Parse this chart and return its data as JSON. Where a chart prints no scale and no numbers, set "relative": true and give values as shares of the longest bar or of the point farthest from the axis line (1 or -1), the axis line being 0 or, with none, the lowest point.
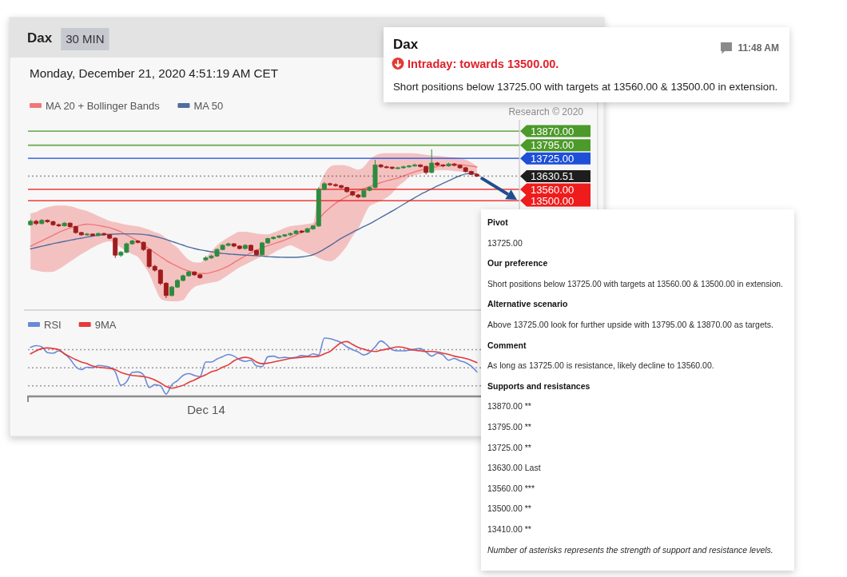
{
  "chart_data": [
    {
      "type": "candlestick",
      "title": "Dax",
      "subtitle": "30 MIN",
      "annotations": [
        "Monday, December 21, 2020 4:51:19 AM CET",
        "Research © 2020"
      ],
      "categories": [
        null,
        null,
        null,
        null,
        null,
        null,
        null,
        null,
        null,
        null,
        null,
        null,
        null,
        null,
        null,
        null,
        null,
        null,
        null,
        null,
        null,
        null,
        null,
        null,
        null,
        null,
        null,
        null,
        null,
        null,
        null,
        null,
        null,
        null,
        null,
        null,
        null,
        null,
        null,
        null,
        null,
        null,
        null,
        null,
        null,
        null,
        null,
        null,
        null,
        null,
        null,
        null,
        null,
        null,
        null,
        null,
        null,
        null,
        null,
        null,
        null,
        null,
        null,
        null,
        null,
        null,
        null,
        null,
        null,
        null,
        null,
        null,
        null,
        null,
        null,
        null,
        null,
        null,
        null,
        null
      ],
      "ohlc": [
        [
          13372,
          13400,
          13366,
          13390
        ],
        [
          13390,
          13398,
          13370,
          13378
        ],
        [
          13378,
          13402,
          13374,
          13395
        ],
        [
          13395,
          13400,
          13382,
          13388
        ],
        [
          13388,
          13393,
          13366,
          13372
        ],
        [
          13372,
          13378,
          13360,
          13366
        ],
        [
          13366,
          13386,
          13362,
          13380
        ],
        [
          13380,
          13384,
          13356,
          13362
        ],
        [
          13362,
          13366,
          13324,
          13330
        ],
        [
          13330,
          13334,
          13312,
          13318
        ],
        [
          13318,
          13328,
          13313,
          13322
        ],
        [
          13322,
          13326,
          13310,
          13315
        ],
        [
          13315,
          13330,
          13311,
          13325
        ],
        [
          13325,
          13329,
          13313,
          13318
        ],
        [
          13318,
          13322,
          13295,
          13300
        ],
        [
          13300,
          13304,
          13195,
          13210
        ],
        [
          13210,
          13232,
          13200,
          13225
        ],
        [
          13225,
          13276,
          13220,
          13270
        ],
        [
          13270,
          13292,
          13265,
          13285
        ],
        [
          13285,
          13290,
          13272,
          13278
        ],
        [
          13278,
          13282,
          13232,
          13240
        ],
        [
          13240,
          13244,
          13140,
          13150
        ],
        [
          13150,
          13158,
          13122,
          13130
        ],
        [
          13130,
          13135,
          13050,
          13060
        ],
        [
          13060,
          13066,
          12981,
          12995
        ],
        [
          12995,
          13046,
          12990,
          13040
        ],
        [
          13040,
          13082,
          13034,
          13075
        ],
        [
          13075,
          13106,
          13070,
          13100
        ],
        [
          13100,
          13128,
          13095,
          13120
        ],
        [
          13120,
          13124,
          13100,
          13105
        ],
        [
          13105,
          13110,
          13084,
          13090
        ],
        [
          13185,
          13205,
          13178,
          13195
        ],
        [
          13195,
          13212,
          13190,
          13205
        ],
        [
          13205,
          13245,
          13200,
          13240
        ],
        [
          13240,
          13268,
          13236,
          13262
        ],
        [
          13262,
          13276,
          13256,
          13270
        ],
        [
          13270,
          13274,
          13252,
          13258
        ],
        [
          13258,
          13262,
          13240,
          13245
        ],
        [
          13245,
          13268,
          13240,
          13262
        ],
        [
          13262,
          13266,
          13230,
          13235
        ],
        [
          13235,
          13240,
          13205,
          13212
        ],
        [
          13212,
          13280,
          13208,
          13275
        ],
        [
          13275,
          13302,
          13270,
          13298
        ],
        [
          13298,
          13310,
          13292,
          13305
        ],
        [
          13305,
          13316,
          13300,
          13312
        ],
        [
          13312,
          13322,
          13306,
          13318
        ],
        [
          13318,
          13330,
          13312,
          13325
        ],
        [
          13325,
          13344,
          13320,
          13338
        ],
        [
          13338,
          13342,
          13326,
          13332
        ],
        [
          13332,
          13356,
          13328,
          13350
        ],
        [
          13350,
          13370,
          13345,
          13365
        ],
        [
          13365,
          13572,
          13360,
          13560
        ],
        [
          13560,
          13600,
          13555,
          13590
        ],
        [
          13590,
          13596,
          13578,
          13585
        ],
        [
          13585,
          13592,
          13574,
          13580
        ],
        [
          13580,
          13584,
          13564,
          13570
        ],
        [
          13570,
          13574,
          13542,
          13548
        ],
        [
          13548,
          13552,
          13524,
          13530
        ],
        [
          13530,
          13536,
          13512,
          13520
        ],
        [
          13520,
          13560,
          13516,
          13555
        ],
        [
          13555,
          13576,
          13550,
          13570
        ],
        [
          13570,
          13717,
          13566,
          13690
        ],
        [
          13690,
          13695,
          13674,
          13680
        ],
        [
          13680,
          13686,
          13672,
          13678
        ],
        [
          13678,
          13682,
          13666,
          13672
        ],
        [
          13672,
          13680,
          13668,
          13675
        ],
        [
          13675,
          13686,
          13670,
          13680
        ],
        [
          13680,
          13690,
          13676,
          13685
        ],
        [
          13685,
          13698,
          13680,
          13690
        ],
        [
          13690,
          13694,
          13676,
          13682
        ],
        [
          13682,
          13686,
          13640,
          13650
        ],
        [
          13650,
          13773,
          13646,
          13700
        ],
        [
          13700,
          13706,
          13684,
          13690
        ],
        [
          13690,
          13694,
          13678,
          13685
        ],
        [
          13685,
          13702,
          13680,
          13695
        ],
        [
          13695,
          13700,
          13682,
          13688
        ],
        [
          13688,
          13692,
          13670,
          13675
        ],
        [
          13675,
          13680,
          13650,
          13655
        ],
        [
          13655,
          13660,
          13636,
          13640
        ],
        [
          13640,
          13646,
          13626,
          13630.51
        ]
      ],
      "colors": [
        "#2e8b3e",
        "#a01c1c",
        "#2e8b3e",
        "#a01c1c",
        "#a01c1c",
        "#a01c1c",
        "#2e8b3e",
        "#a01c1c",
        "#a01c1c",
        "#a01c1c",
        "#2e8b3e",
        "#a01c1c",
        "#2e8b3e",
        "#a01c1c",
        "#a01c1c",
        "#a01c1c",
        "#2e8b3e",
        "#2e8b3e",
        "#2e8b3e",
        "#a01c1c",
        "#a01c1c",
        "#a01c1c",
        "#a01c1c",
        "#a01c1c",
        "#a01c1c",
        "#2e8b3e",
        "#2e8b3e",
        "#2e8b3e",
        "#2e8b3e",
        "#a01c1c",
        "#a01c1c",
        "#2e8b3e",
        "#2e8b3e",
        "#2e8b3e",
        "#2e8b3e",
        "#2e8b3e",
        "#a01c1c",
        "#a01c1c",
        "#2e8b3e",
        "#a01c1c",
        "#a01c1c",
        "#2e8b3e",
        "#2e8b3e",
        "#2e8b3e",
        "#2e8b3e",
        "#2e8b3e",
        "#2e8b3e",
        "#2e8b3e",
        "#a01c1c",
        "#2e8b3e",
        "#2e8b3e",
        "#2e8b3e",
        "#2e8b3e",
        "#a01c1c",
        "#a01c1c",
        "#a01c1c",
        "#a01c1c",
        "#a01c1c",
        "#a01c1c",
        "#2e8b3e",
        "#2e8b3e",
        "#2e8b3e",
        "#a01c1c",
        "#a01c1c",
        "#a01c1c",
        "#2e8b3e",
        "#2e8b3e",
        "#2e8b3e",
        "#2e8b3e",
        "#a01c1c",
        "#a01c1c",
        "#2e8b3e",
        "#a01c1c",
        "#a01c1c",
        "#2e8b3e",
        "#a01c1c",
        "#a01c1c",
        "#a01c1c",
        "#a01c1c",
        "#a01c1c"
      ],
      "series": [
        {
          "name": "MA 20 + Bollinger Bands",
          "type": "line",
          "color": "#f07878",
          "values": [
            13257,
            13272,
            13286,
            13301,
            13316,
            13331,
            13343,
            13354,
            13362,
            13370,
            13375,
            13372,
            13368,
            13362,
            13356,
            13346,
            13334,
            13318,
            13302,
            13286,
            13264,
            13244,
            13222,
            13202,
            13182,
            13165,
            13150,
            13136,
            13125,
            13117,
            13112,
            13112,
            13118,
            13126,
            13138,
            13152,
            13170,
            13188,
            13205,
            13222,
            13236,
            13248,
            13260,
            13270,
            13280,
            13290,
            13303,
            13317,
            13331,
            13345,
            13360,
            13400,
            13435,
            13462,
            13486,
            13505,
            13522,
            13538,
            13552,
            13564,
            13575,
            13586,
            13596,
            13605,
            13613,
            13620,
            13632,
            13643,
            13653,
            13662,
            13670,
            13676,
            13682,
            13687,
            13690,
            13692,
            13691,
            13688,
            13684,
            13679
          ],
          "lower": [
            13134,
            13128,
            13122,
            13120,
            13122,
            13135,
            13155,
            13175,
            13195,
            13215,
            13232,
            13250,
            13265,
            13278,
            13283,
            13270,
            13250,
            13232,
            13215,
            13200,
            13160,
            13110,
            13040,
            12980,
            12966,
            12964,
            12964,
            12970,
            13010,
            13040,
            13050,
            13058,
            13064,
            13068,
            13085,
            13105,
            13125,
            13145,
            13160,
            13175,
            13190,
            13202,
            13207,
            13222,
            13238,
            13252,
            13262,
            13250,
            13235,
            13220,
            13210,
            13195,
            13182,
            13177,
            13190,
            13220,
            13260,
            13310,
            13350,
            13415,
            13470,
            13485,
            13500,
            13515,
            13540,
            13575,
            13598,
            13625,
            13635,
            13643,
            13650,
            13656,
            13662,
            13662,
            13661,
            13658,
            13655,
            13652,
            13648,
            13645
          ],
          "upper": [
            13432,
            13440,
            13455,
            13465,
            13472,
            13474,
            13474,
            13470,
            13462,
            13452,
            13445,
            13432,
            13418,
            13404,
            13392,
            13385,
            13378,
            13372,
            13367,
            13363,
            13355,
            13345,
            13332,
            13322,
            13300,
            13272,
            13250,
            13215,
            13185,
            13172,
            13170,
            13195,
            13230,
            13262,
            13285,
            13305,
            13322,
            13334,
            13334,
            13330,
            13325,
            13321,
            13320,
            13330,
            13342,
            13355,
            13364,
            13368,
            13372,
            13376,
            13380,
            13560,
            13640,
            13680,
            13690,
            13690,
            13685,
            13675,
            13665,
            13680,
            13717,
            13740,
            13750,
            13752,
            13752,
            13752,
            13752,
            13752,
            13751,
            13748,
            13744,
            13740,
            13738,
            13735,
            13732,
            13730,
            13726,
            13718,
            13703,
            13683
          ]
        },
        {
          "name": "MA 50",
          "type": "line",
          "color": "#4f6d9e",
          "values": [
            13243,
            13250,
            13257,
            13264,
            13271,
            13277,
            13283,
            13289,
            13295,
            13300,
            13306,
            13311,
            13315,
            13319,
            13321,
            13322,
            13323,
            13323,
            13323,
            13322,
            13320,
            13316,
            13310,
            13302,
            13293,
            13283,
            13273,
            13263,
            13253,
            13245,
            13238,
            13233,
            13228,
            13224,
            13219,
            13216,
            13214,
            13212,
            13210,
            13208,
            13207,
            13205,
            13202,
            13200,
            13199,
            13198,
            13198,
            13198,
            13200,
            13205,
            13212,
            13225,
            13242,
            13260,
            13280,
            13300,
            13316,
            13332,
            13347,
            13362,
            13376,
            13393,
            13410,
            13427,
            13444,
            13462,
            13480,
            13498,
            13516,
            13533,
            13548,
            13563,
            13578,
            13592,
            13606,
            13620,
            13632,
            13642,
            13645,
            13641
          ]
        }
      ],
      "ylim": [
        12930,
        13930
      ],
      "yticks": [
        {
          "value": 13870,
          "label": "13870.00"
        },
        {
          "value": 13795,
          "label": "13795.00"
        },
        {
          "value": 13725,
          "label": "13725.00"
        },
        {
          "value": 13630.51,
          "label": "13630.51"
        },
        {
          "value": 13560,
          "label": "13560.00"
        },
        {
          "value": 13500,
          "label": "13500.00"
        }
      ],
      "ref_lines": [
        {
          "axis": "y",
          "value": 13870,
          "color": "#4c9a2a"
        },
        {
          "axis": "y",
          "value": 13795,
          "color": "#4c9a2a"
        },
        {
          "axis": "y",
          "value": 13725,
          "color": "#1d4fd8"
        },
        {
          "axis": "y",
          "value": 13630.51,
          "color": "#1e1e1e",
          "line_style": "dotted"
        },
        {
          "axis": "y",
          "value": 13560,
          "color": "#ee1c1c"
        },
        {
          "axis": "y",
          "value": 13500,
          "color": "#ee1c1c"
        }
      ],
      "legend": "top left",
      "tick_labels": "y"
    },
    {
      "type": "line",
      "annotations": [
        "Dec 14"
      ],
      "categories": [
        null,
        null,
        null,
        null,
        null,
        null,
        null,
        null,
        null,
        null,
        null,
        null,
        null,
        null,
        null,
        null,
        null,
        null,
        null,
        null,
        null,
        null,
        null,
        null,
        null,
        null,
        null,
        null,
        null,
        null,
        null,
        null,
        null,
        null,
        null,
        null,
        null,
        null,
        null,
        null,
        null,
        null,
        null,
        null,
        null,
        null,
        null,
        null,
        null,
        null,
        null,
        null,
        null,
        null,
        null,
        null,
        null,
        null,
        null,
        null,
        null,
        null,
        null,
        null,
        null,
        null,
        null,
        null,
        null,
        null,
        null,
        null,
        null,
        null,
        null,
        null,
        null,
        null,
        null,
        null
      ],
      "series": [
        {
          "name": "RSI",
          "color": "#6a8ad8",
          "values": [
            0.84,
            0.87,
            0.85,
            0.75,
            0.74,
            0.78,
            0.73,
            0.64,
            0.51,
            0.46,
            0.5,
            0.49,
            0.53,
            0.52,
            0.5,
            0.42,
            0.19,
            0.25,
            0.41,
            0.42,
            0.37,
            0.15,
            0.2,
            0.18,
            0.04,
            0.2,
            0.27,
            0.36,
            0.39,
            0.36,
            0.34,
            0.59,
            0.59,
            0.64,
            0.68,
            0.72,
            0.69,
            0.63,
            0.6,
            0.62,
            0.52,
            0.51,
            0.68,
            0.69,
            0.66,
            0.67,
            0.66,
            0.67,
            0.7,
            0.69,
            0.73,
            0.71,
            1,
            0.99,
            0.96,
            0.92,
            0.85,
            0.8,
            0.76,
            0.71,
            0.75,
            0.85,
            0.95,
            0.89,
            0.8,
            0.78,
            0.78,
            0.79,
            0.81,
            0.82,
            0.76,
            0.69,
            0.74,
            0.71,
            0.62,
            0.65,
            0.61,
            0.58,
            0.52,
            0.42
          ]
        },
        {
          "name": "9MA",
          "color": "#e63a3a",
          "values": [
            0.73,
            0.78,
            0.82,
            0.83,
            0.82,
            0.8,
            0.73,
            0.68,
            0.63,
            0.59,
            0.56,
            0.52,
            0.5,
            0.49,
            0.48,
            0.46,
            0.41,
            0.38,
            0.36,
            0.35,
            0.34,
            0.32,
            0.28,
            0.23,
            0.17,
            0.14,
            0.16,
            0.19,
            0.24,
            0.28,
            0.33,
            0.37,
            0.42,
            0.45,
            0.5,
            0.54,
            0.61,
            0.65,
            0.67,
            0.65,
            0.59,
            0.56,
            0.57,
            0.59,
            0.61,
            0.63,
            0.65,
            0.66,
            0.67,
            0.68,
            0.68,
            0.69,
            0.73,
            0.77,
            0.85,
            0.92,
            0.94,
            0.89,
            0.84,
            0.81,
            0.78,
            0.77,
            0.79,
            0.81,
            0.83,
            0.85,
            0.84,
            0.81,
            0.79,
            0.78,
            0.77,
            0.77,
            0.76,
            0.74,
            0.72,
            0.69,
            0.67,
            0.65,
            0.62,
            0.58
          ]
        }
      ],
      "relative": true,
      "ref_lines": [
        {
          "axis": "y",
          "value": 0.8,
          "color": "#9a9a9a",
          "line_style": "dotted"
        },
        {
          "axis": "y",
          "value": 0.49,
          "color": "#9a9a9a",
          "line_style": "dotted"
        },
        {
          "axis": "y",
          "value": 0.18,
          "color": "#9a9a9a",
          "line_style": "dotted"
        }
      ],
      "legend": "top left"
    },
    {
      "type": "other",
      "title": "Dax",
      "subtitle": "Intraday: towards 13500.00.",
      "annotations": [
        "11:48 AM",
        "Short positions below 13725.00 with targets at 13560.00 & 13500.00 in extension."
      ]
    },
    {
      "type": "other",
      "annotations": [
        "Pivot",
        "13725.00",
        "Our preference",
        "Short positions below 13725.00 with targets at 13560.00 & 13500.00 in extension.",
        "Alternative scenario",
        "Above 13725.00 look for further upside with 13795.00 & 13870.00 as targets.",
        "Comment",
        "As long as 13725.00 is resistance, likely decline to 13560.00.",
        "Supports and resistances",
        "13870.00 **",
        "13795.00 **",
        "13725.00 **",
        "13630.00 Last",
        "13560.00 ***",
        "13500.00 **",
        "13410.00 **",
        "Number of asterisks represents the strength of support and resistance levels."
      ]
    }
  ]
}
